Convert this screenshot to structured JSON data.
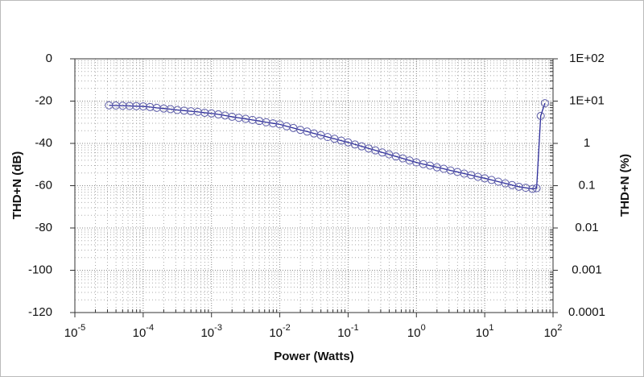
{
  "chart_data": {
    "type": "line",
    "x_label": "Power (Watts)",
    "y_label": "THD+N (dB)",
    "y2_label": "THD+N (%)",
    "xlog": true,
    "y2log": true,
    "grid": true,
    "xlim": [
      1e-05,
      100
    ],
    "xticks": [
      {
        "value": 1e-05,
        "label": "10",
        "exponent": "-5"
      },
      {
        "value": 0.0001,
        "label": "10",
        "exponent": "-4"
      },
      {
        "value": 0.001,
        "label": "10",
        "exponent": "-3"
      },
      {
        "value": 0.01,
        "label": "10",
        "exponent": "-2"
      },
      {
        "value": 0.1,
        "label": "10",
        "exponent": "-1"
      },
      {
        "value": 1,
        "label": "10",
        "exponent": "0"
      },
      {
        "value": 10,
        "label": "10",
        "exponent": "1"
      },
      {
        "value": 100,
        "label": "10",
        "exponent": "2"
      }
    ],
    "ylim": [
      -120,
      0
    ],
    "yticks": [
      0,
      -20,
      -40,
      -60,
      -80,
      -100,
      -120
    ],
    "y2lim": [
      0.0001,
      100
    ],
    "y2ticks": [
      {
        "value": 100,
        "label": "1E+02"
      },
      {
        "value": 10,
        "label": "1E+01"
      },
      1,
      0.1,
      0.01,
      0.001,
      0.0001
    ],
    "series": [
      {
        "name": "THD+N",
        "color": "#2b2b9a",
        "marker_color": "#5a5aa8",
        "x": [
          3.16e-05,
          3.98e-05,
          5.01e-05,
          6.31e-05,
          7.94e-05,
          0.0001,
          0.000126,
          0.000158,
          0.0002,
          0.000251,
          0.000316,
          0.000398,
          0.000501,
          0.000631,
          0.000794,
          0.001,
          0.00126,
          0.00158,
          0.002,
          0.00251,
          0.00316,
          0.00398,
          0.00501,
          0.00631,
          0.00794,
          0.01,
          0.0126,
          0.0158,
          0.02,
          0.0251,
          0.0316,
          0.0398,
          0.0501,
          0.0631,
          0.0794,
          0.1,
          0.126,
          0.158,
          0.2,
          0.251,
          0.316,
          0.398,
          0.501,
          0.631,
          0.794,
          1,
          1.26,
          1.58,
          2,
          2.51,
          3.16,
          3.98,
          5.01,
          6.31,
          7.94,
          10,
          12.6,
          15.8,
          20,
          25.1,
          31.6,
          39.8,
          50.1,
          57.5,
          66,
          76
        ],
        "values": [
          -22,
          -22.1,
          -22.2,
          -22.3,
          -22.4,
          -22.5,
          -22.8,
          -23.2,
          -23.5,
          -23.8,
          -24.2,
          -24.5,
          -24.8,
          -25.1,
          -25.5,
          -25.8,
          -26.3,
          -26.8,
          -27.4,
          -27.9,
          -28.4,
          -28.9,
          -29.4,
          -30,
          -30.5,
          -31,
          -31.9,
          -32.7,
          -33.6,
          -34.4,
          -35.3,
          -36.1,
          -37,
          -37.8,
          -38.7,
          -39.5,
          -40.5,
          -41.4,
          -42.4,
          -43.3,
          -44.3,
          -45.2,
          -46.2,
          -47.1,
          -48.1,
          -49,
          -49.8,
          -50.5,
          -51.3,
          -52,
          -52.8,
          -53.5,
          -54.3,
          -55,
          -55.8,
          -56.5,
          -57.3,
          -58.1,
          -58.9,
          -59.7,
          -60.5,
          -61,
          -61.5,
          -61.2,
          -27,
          -21
        ]
      }
    ]
  }
}
